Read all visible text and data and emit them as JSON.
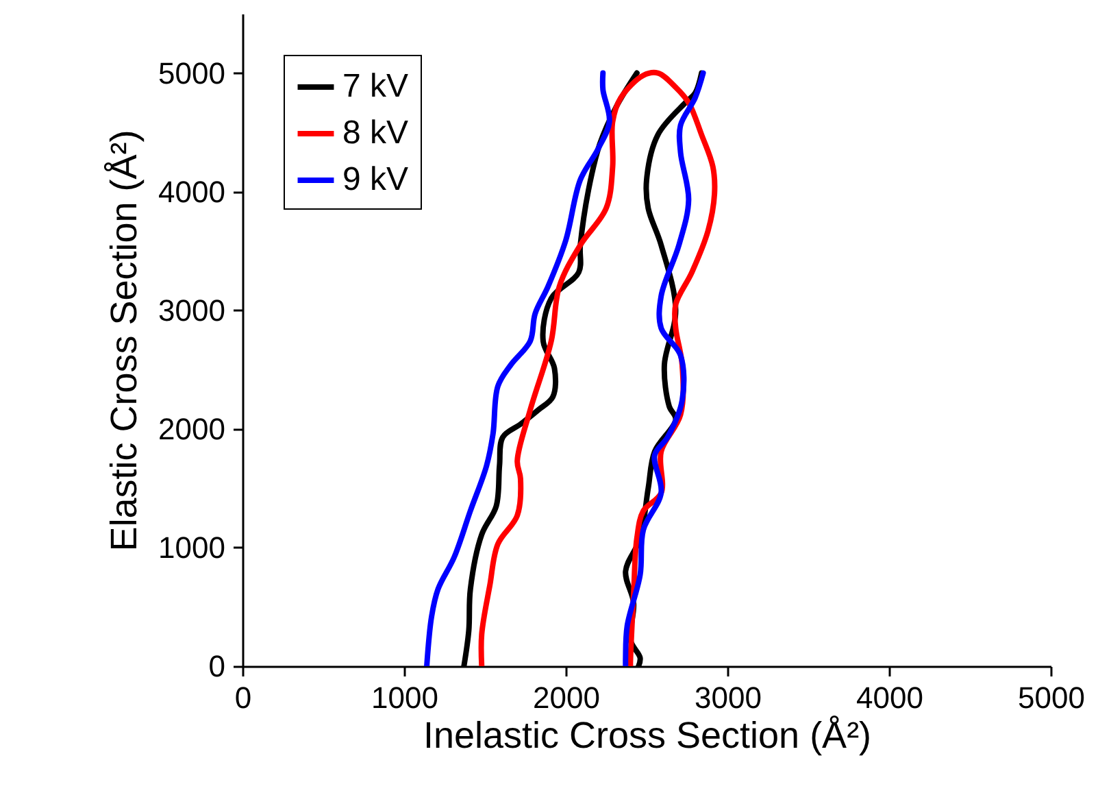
{
  "chart_data": {
    "type": "line",
    "xlabel": "Inelastic Cross Section (Å²)",
    "ylabel": "Elastic Cross Section (Å²)",
    "xlim": [
      0,
      5000
    ],
    "xticks": [
      0,
      1000,
      2000,
      3000,
      4000,
      5000
    ],
    "ylim": [
      0,
      5500
    ],
    "yticks": [
      0,
      1000,
      2000,
      3000,
      4000,
      5000
    ],
    "grid": false,
    "legend": "top left",
    "line_style": "solid",
    "marker": "none",
    "series": [
      {
        "name": "7 kV",
        "color": "#000000",
        "x": [
          1370,
          1400,
          1410,
          1480,
          1570,
          1590,
          1610,
          1720,
          1830,
          1920,
          1930,
          1860,
          1910,
          2080,
          2090,
          2140,
          2210,
          2310,
          2440,
          null,
          2840,
          2800,
          2740,
          2570,
          2500,
          2510,
          2590,
          2680,
          2610,
          2640,
          2680,
          2550,
          2510,
          2460,
          2370,
          2420,
          2400,
          2460,
          2450
        ],
        "values": [
          0,
          300,
          650,
          1110,
          1350,
          1690,
          1930,
          2040,
          2160,
          2270,
          2510,
          2740,
          3100,
          3320,
          3550,
          4010,
          4400,
          4710,
          5000,
          null,
          5000,
          4830,
          4750,
          4480,
          4100,
          3860,
          3550,
          3000,
          2540,
          2190,
          2080,
          1810,
          1500,
          1080,
          800,
          530,
          220,
          70,
          0
        ]
      },
      {
        "name": "8 kV",
        "color": "#ff0000",
        "x": [
          1480,
          1480,
          1530,
          1580,
          1700,
          1720,
          1700,
          1780,
          1910,
          1960,
          2090,
          2250,
          2290,
          2290,
          2340,
          2480,
          2570,
          2680,
          2760,
          2840,
          2910,
          2920,
          2880,
          2780,
          2680,
          2680,
          2720,
          2710,
          2590,
          2590,
          2480,
          2440,
          2420,
          2400,
          2400
        ],
        "values": [
          0,
          270,
          680,
          1030,
          1270,
          1580,
          1730,
          2160,
          2740,
          3200,
          3550,
          3860,
          4210,
          4590,
          4790,
          4980,
          5000,
          4880,
          4750,
          4480,
          4210,
          3980,
          3670,
          3320,
          3050,
          2850,
          2540,
          2120,
          1810,
          1460,
          1310,
          1080,
          620,
          40,
          0
        ]
      },
      {
        "name": "9 kV",
        "color": "#0000ff",
        "x": [
          1140,
          1170,
          1210,
          1310,
          1410,
          1510,
          1550,
          1580,
          1660,
          1780,
          1810,
          1890,
          2000,
          2090,
          2200,
          2270,
          2230,
          2230,
          null,
          2850,
          2800,
          2710,
          2710,
          2760,
          2700,
          2590,
          2590,
          2710,
          2720,
          2630,
          2550,
          2590,
          2480,
          2460,
          2380,
          2370,
          2370
        ],
        "values": [
          0,
          420,
          650,
          920,
          1310,
          1690,
          1960,
          2360,
          2540,
          2740,
          2970,
          3200,
          3590,
          4100,
          4360,
          4590,
          4860,
          5000,
          null,
          5000,
          4790,
          4560,
          4330,
          3930,
          3550,
          3120,
          2850,
          2620,
          2240,
          1930,
          1780,
          1460,
          1150,
          770,
          340,
          70,
          0
        ]
      }
    ]
  }
}
